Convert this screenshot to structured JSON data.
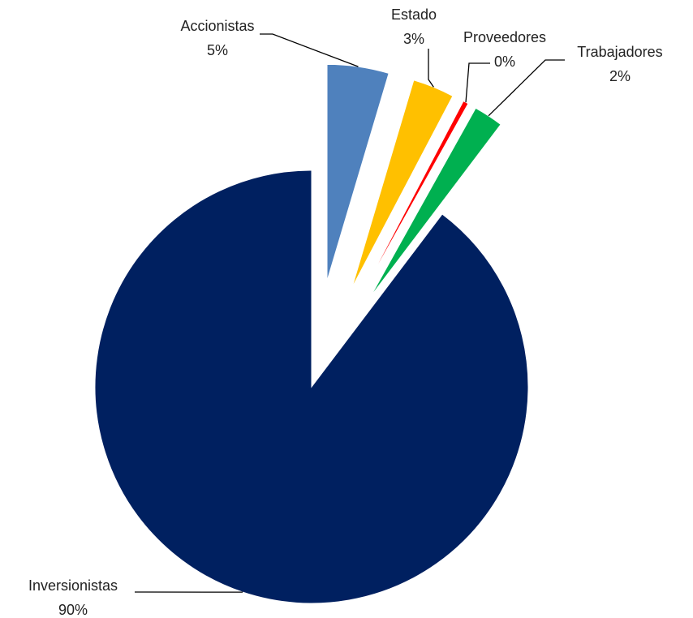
{
  "chart_data": {
    "type": "pie",
    "title": "",
    "slices": [
      {
        "label": "Accionistas",
        "value": 4.6,
        "display": "5%",
        "color": "#4f81bd"
      },
      {
        "label": "Estado",
        "value": 3.1,
        "display": "3%",
        "color": "#ffc000"
      },
      {
        "label": "Proveedores",
        "value": 0.4,
        "display": "0%",
        "color": "#ff0000"
      },
      {
        "label": "Trabajadores",
        "value": 2.2,
        "display": "2%",
        "color": "#00b050"
      },
      {
        "label": "Inversionistas",
        "value": 89.7,
        "display": "90%",
        "color": "#002060"
      }
    ],
    "legend": "none",
    "data_labels": "outside-with-leader-lines"
  }
}
